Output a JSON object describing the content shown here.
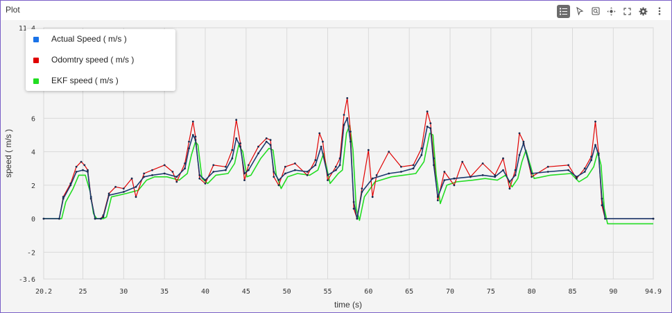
{
  "window": {
    "title": "Plot"
  },
  "toolbar": {
    "buttons": [
      {
        "name": "legend-toggle",
        "icon": "list-icon",
        "active": true
      },
      {
        "name": "select",
        "icon": "pointer-icon",
        "active": false
      },
      {
        "name": "zoom",
        "icon": "zoom-icon",
        "active": false
      },
      {
        "name": "pan",
        "icon": "pan-icon",
        "active": false
      },
      {
        "name": "fullscreen",
        "icon": "fullscreen-icon",
        "active": false
      },
      {
        "name": "settings",
        "icon": "gear-icon",
        "active": false
      },
      {
        "name": "more",
        "icon": "more-vertical-icon",
        "active": false
      }
    ]
  },
  "legend": {
    "items": [
      {
        "label": "Actual Speed ( m/s )",
        "color": "#1a73e8"
      },
      {
        "label": "Odomtry speed ( m/s )",
        "color": "#e00000"
      },
      {
        "label": "EKF speed ( m/s )",
        "color": "#22dd22"
      }
    ]
  },
  "chart_data": {
    "type": "line",
    "xlabel": "time (s)",
    "ylabel": "speed ( m/s )",
    "xlim": [
      20.2,
      94.9
    ],
    "ylim": [
      -3.6,
      11.4
    ],
    "x_ticks": [
      "20.2",
      "25",
      "30",
      "35",
      "40",
      "45",
      "50",
      "55",
      "60",
      "65",
      "70",
      "75",
      "80",
      "85",
      "90",
      "94.9"
    ],
    "y_ticks": [
      "-3.6",
      "-2",
      "0",
      "2",
      "4",
      "6",
      "11.4"
    ],
    "grid": true,
    "legend_position": "top-left",
    "series": [
      {
        "name": "Actual Speed ( m/s )",
        "color": "#1a3a6e",
        "x": [
          20.2,
          22.1,
          22.6,
          23.5,
          24.2,
          25.0,
          25.6,
          26.0,
          26.5,
          27.2,
          27.5,
          28.2,
          30.0,
          31.5,
          32.5,
          33.5,
          35.0,
          36.5,
          37.5,
          38.0,
          38.5,
          38.8,
          39.3,
          40.0,
          41.0,
          42.5,
          43.3,
          43.8,
          44.3,
          44.8,
          45.3,
          46.5,
          47.5,
          48.0,
          48.4,
          49.0,
          49.8,
          51.0,
          52.5,
          53.5,
          54.2,
          55.0,
          56.0,
          56.5,
          57.0,
          57.4,
          57.8,
          58.2,
          58.6,
          59.2,
          60.5,
          62.5,
          64.0,
          65.5,
          66.5,
          67.2,
          67.6,
          68.0,
          68.5,
          69.3,
          70.5,
          72.5,
          74.0,
          75.5,
          76.5,
          77.3,
          78.0,
          78.5,
          79.0,
          80.0,
          82.0,
          84.5,
          85.5,
          86.5,
          87.3,
          87.8,
          88.2,
          88.6,
          89.0,
          94.9
        ],
        "y": [
          0,
          0,
          1.2,
          2.0,
          2.8,
          2.9,
          2.8,
          1.2,
          0,
          0,
          0.1,
          1.4,
          1.6,
          1.9,
          2.5,
          2.6,
          2.7,
          2.5,
          3.0,
          4.2,
          5.0,
          4.7,
          2.6,
          2.3,
          2.8,
          2.9,
          3.6,
          4.8,
          4.3,
          2.7,
          2.9,
          3.9,
          4.6,
          4.4,
          2.8,
          2.3,
          2.7,
          2.9,
          2.8,
          3.2,
          4.3,
          2.6,
          2.9,
          3.2,
          5.6,
          6.0,
          4.6,
          1.0,
          0,
          1.6,
          2.4,
          2.7,
          2.8,
          3.0,
          3.8,
          5.5,
          5.4,
          3.2,
          1.3,
          2.3,
          2.4,
          2.5,
          2.6,
          2.5,
          2.9,
          2.2,
          2.6,
          3.8,
          4.5,
          2.7,
          2.8,
          2.9,
          2.5,
          2.8,
          3.5,
          4.4,
          3.8,
          1.2,
          0,
          0
        ]
      },
      {
        "name": "Odomtry speed ( m/s )",
        "color": "#e00000",
        "x": [
          20.2,
          22.1,
          22.6,
          23.5,
          24.2,
          24.8,
          25.2,
          25.6,
          26.0,
          26.5,
          27.2,
          27.5,
          28.2,
          29.0,
          30.0,
          31.0,
          31.5,
          32.5,
          33.5,
          35.0,
          36.0,
          36.5,
          37.5,
          38.0,
          38.5,
          38.8,
          39.3,
          40.0,
          41.0,
          42.5,
          43.3,
          43.8,
          44.3,
          44.8,
          45.3,
          46.5,
          47.5,
          48.0,
          48.4,
          49.0,
          49.8,
          51.0,
          52.5,
          53.5,
          54.0,
          54.4,
          55.0,
          56.0,
          56.5,
          57.0,
          57.4,
          57.8,
          58.2,
          58.6,
          59.2,
          60.0,
          60.5,
          61.0,
          62.5,
          64.0,
          65.5,
          66.5,
          67.2,
          67.6,
          68.0,
          68.5,
          69.3,
          70.5,
          71.5,
          72.5,
          74.0,
          75.5,
          76.5,
          77.3,
          78.0,
          78.5,
          79.0,
          80.0,
          82.0,
          84.5,
          85.5,
          86.5,
          87.3,
          87.8,
          88.2,
          88.6,
          89.0,
          94.9
        ],
        "y": [
          0,
          0,
          1.3,
          2.1,
          3.1,
          3.4,
          3.2,
          2.9,
          1.3,
          0,
          0,
          0.2,
          1.5,
          1.9,
          1.8,
          2.4,
          1.3,
          2.7,
          2.9,
          3.2,
          2.8,
          2.2,
          3.3,
          4.6,
          5.8,
          4.9,
          2.4,
          2.1,
          3.2,
          3.1,
          4.1,
          5.9,
          4.5,
          2.3,
          3.2,
          4.3,
          4.8,
          4.7,
          2.5,
          2.0,
          3.1,
          3.3,
          2.6,
          3.5,
          5.1,
          4.6,
          2.3,
          3.1,
          3.6,
          6.2,
          7.2,
          5.2,
          0.6,
          0,
          1.8,
          4.1,
          1.3,
          2.6,
          4.0,
          3.1,
          3.2,
          4.2,
          6.4,
          5.7,
          3.6,
          1.1,
          2.8,
          2.0,
          3.4,
          2.5,
          3.3,
          2.6,
          3.6,
          1.8,
          2.9,
          5.1,
          4.6,
          2.5,
          3.1,
          3.2,
          2.4,
          3.0,
          3.7,
          5.8,
          3.9,
          0.8,
          0,
          0
        ]
      },
      {
        "name": "EKF speed ( m/s )",
        "color": "#22dd22",
        "x": [
          20.2,
          22.4,
          22.9,
          23.8,
          24.5,
          25.3,
          25.9,
          26.3,
          26.7,
          27.5,
          27.9,
          28.5,
          30.3,
          31.8,
          32.8,
          33.8,
          35.3,
          36.8,
          37.8,
          38.3,
          38.8,
          39.1,
          39.6,
          40.3,
          41.3,
          42.8,
          43.6,
          44.1,
          44.6,
          45.1,
          45.6,
          46.8,
          47.8,
          48.3,
          48.7,
          49.3,
          50.1,
          51.3,
          52.8,
          53.8,
          54.5,
          55.3,
          56.3,
          56.8,
          57.3,
          57.7,
          58.1,
          58.5,
          58.9,
          59.5,
          60.8,
          62.8,
          64.3,
          65.8,
          66.8,
          67.5,
          67.9,
          68.3,
          68.8,
          69.6,
          70.8,
          72.8,
          74.3,
          75.8,
          76.8,
          77.6,
          78.3,
          78.8,
          79.3,
          80.3,
          82.3,
          84.8,
          85.8,
          86.8,
          87.6,
          88.1,
          88.5,
          88.9,
          89.3,
          94.9
        ],
        "y": [
          0,
          0,
          1.0,
          1.8,
          2.6,
          2.6,
          1.6,
          0.3,
          0,
          0,
          0.1,
          1.3,
          1.5,
          1.7,
          2.3,
          2.5,
          2.5,
          2.3,
          2.7,
          3.8,
          4.6,
          4.4,
          2.4,
          2.1,
          2.6,
          2.7,
          3.3,
          4.4,
          4.0,
          2.5,
          2.6,
          3.6,
          4.2,
          4.1,
          2.6,
          1.8,
          2.5,
          2.7,
          2.6,
          2.9,
          3.9,
          2.1,
          2.7,
          2.9,
          5.1,
          5.6,
          4.1,
          0.6,
          -0.1,
          1.3,
          2.2,
          2.5,
          2.6,
          2.7,
          3.4,
          5.1,
          5.0,
          2.6,
          0.9,
          2.0,
          2.2,
          2.3,
          2.4,
          2.3,
          2.6,
          1.9,
          2.4,
          3.4,
          4.1,
          2.4,
          2.6,
          2.7,
          2.2,
          2.5,
          3.1,
          4.0,
          3.2,
          0.6,
          -0.3,
          -0.3
        ]
      }
    ]
  }
}
